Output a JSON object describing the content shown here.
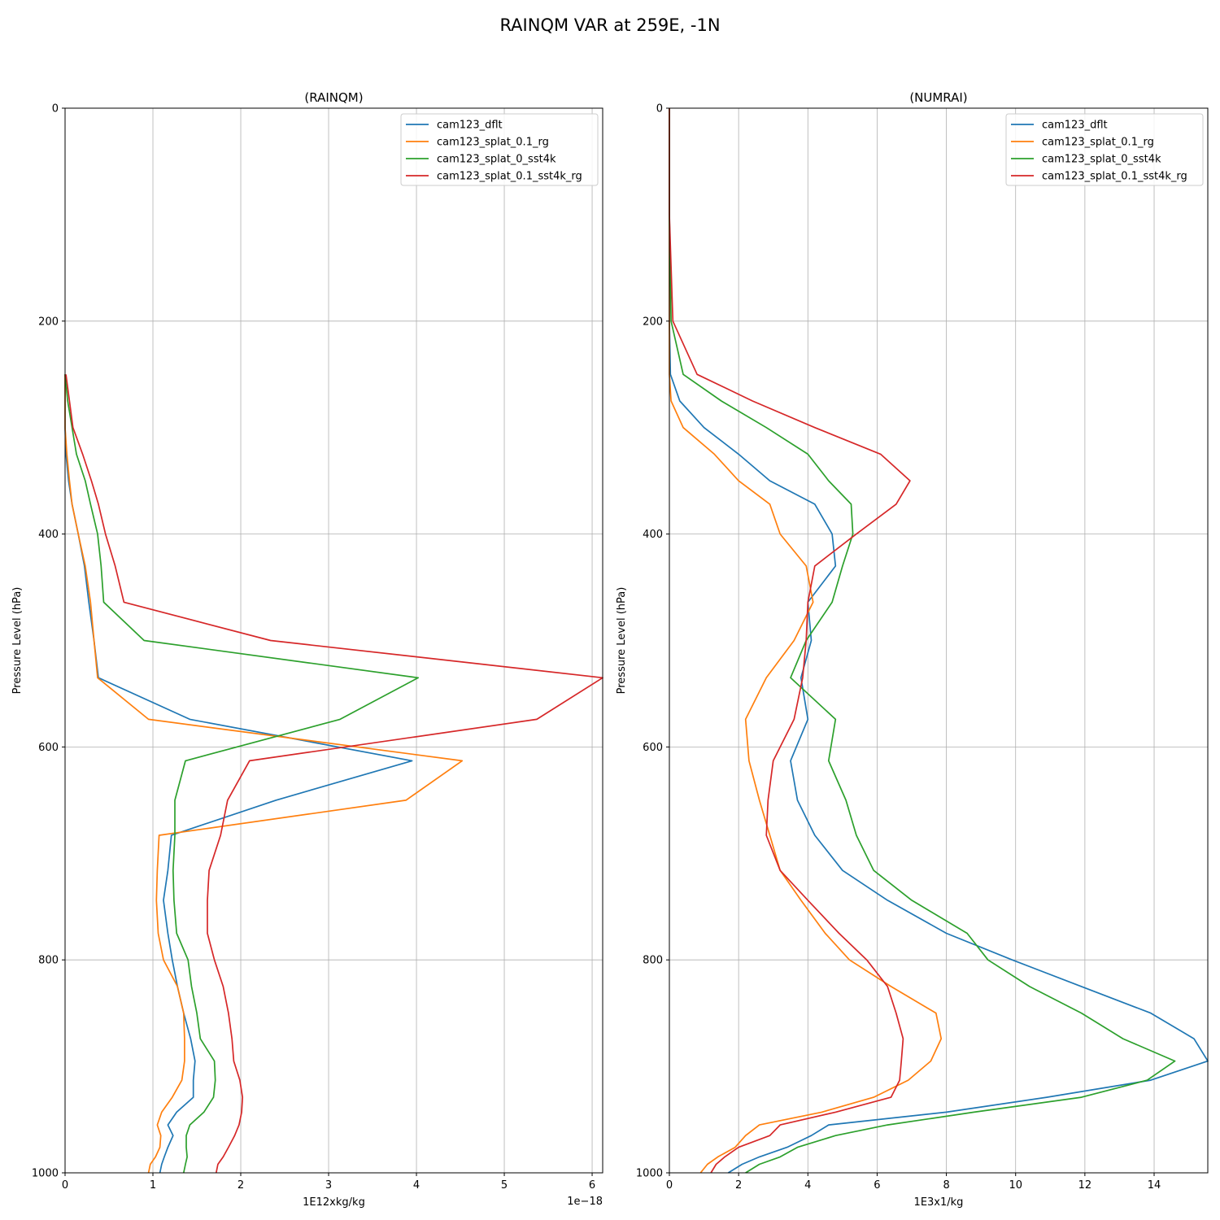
{
  "suptitle": "RAINQM VAR at 259E, -1N",
  "colors": {
    "cam123_dflt": "#1f77b4",
    "cam123_splat_0.1_rg": "#ff7f0e",
    "cam123_splat_0_sst4k": "#2ca02c",
    "cam123_splat_0.1_sst4k_rg": "#d62728"
  },
  "chart_data": [
    {
      "type": "line",
      "title": "(RAINQM)",
      "xlabel": "1E12xkg/kg",
      "ylabel": "Pressure Level (hPa)",
      "offset_text": "1e−18",
      "xlim": [
        0,
        6.12
      ],
      "ylim": [
        1000,
        0
      ],
      "xticks": [
        0,
        1,
        2,
        3,
        4,
        5,
        6
      ],
      "yticks": [
        0,
        200,
        400,
        600,
        800,
        1000
      ],
      "grid": true,
      "legend_position": "top-right",
      "y": [
        1000,
        992,
        985,
        976,
        965,
        955,
        943,
        929,
        913,
        895,
        874,
        850,
        825,
        800,
        775,
        744,
        716,
        683,
        650,
        613,
        574,
        535,
        500,
        464,
        430,
        400,
        372,
        350,
        325,
        300,
        275,
        250
      ],
      "series": [
        {
          "name": "cam123_dflt",
          "values": [
            1.08,
            1.1,
            1.13,
            1.17,
            1.23,
            1.17,
            1.27,
            1.46,
            1.46,
            1.48,
            1.43,
            1.35,
            1.28,
            1.22,
            1.17,
            1.12,
            1.17,
            1.21,
            2.4,
            3.95,
            1.42,
            0.38,
            0.33,
            0.27,
            0.22,
            0.15,
            0.08,
            0.04,
            0.01,
            0.0,
            0.0,
            0.0
          ]
        },
        {
          "name": "cam123_splat_0.1_rg",
          "values": [
            0.95,
            0.97,
            1.03,
            1.08,
            1.09,
            1.05,
            1.1,
            1.22,
            1.33,
            1.36,
            1.36,
            1.35,
            1.28,
            1.12,
            1.06,
            1.04,
            1.05,
            1.07,
            3.88,
            4.52,
            0.95,
            0.37,
            0.33,
            0.29,
            0.23,
            0.15,
            0.08,
            0.05,
            0.02,
            0.0,
            0.0,
            0.0
          ]
        },
        {
          "name": "cam123_splat_0_sst4k",
          "values": [
            1.35,
            1.37,
            1.39,
            1.38,
            1.38,
            1.42,
            1.58,
            1.69,
            1.71,
            1.7,
            1.54,
            1.5,
            1.44,
            1.4,
            1.27,
            1.24,
            1.23,
            1.25,
            1.25,
            1.37,
            3.13,
            4.02,
            0.9,
            0.44,
            0.41,
            0.37,
            0.29,
            0.23,
            0.13,
            0.08,
            0.03,
            0.0
          ]
        },
        {
          "name": "cam123_splat_0.1_sst4k_rg",
          "values": [
            1.72,
            1.74,
            1.8,
            1.86,
            1.93,
            1.98,
            2.01,
            2.02,
            1.99,
            1.92,
            1.9,
            1.86,
            1.8,
            1.7,
            1.62,
            1.62,
            1.64,
            1.77,
            1.85,
            2.1,
            5.37,
            6.12,
            2.34,
            0.67,
            0.57,
            0.46,
            0.38,
            0.3,
            0.2,
            0.09,
            0.05,
            0.01
          ]
        }
      ]
    },
    {
      "type": "line",
      "title": "(NUMRAI)",
      "xlabel": "1E3x1/kg",
      "ylabel": "Pressure Level (hPa)",
      "offset_text": "",
      "xlim": [
        0,
        15.55
      ],
      "ylim": [
        1000,
        0
      ],
      "xticks": [
        0,
        2,
        4,
        6,
        8,
        10,
        12,
        14
      ],
      "yticks": [
        0,
        200,
        400,
        600,
        800,
        1000
      ],
      "grid": true,
      "legend_position": "top-right",
      "y": [
        1000,
        992,
        985,
        976,
        965,
        955,
        943,
        929,
        913,
        895,
        874,
        850,
        825,
        800,
        775,
        744,
        716,
        683,
        650,
        613,
        574,
        535,
        500,
        464,
        430,
        400,
        372,
        350,
        325,
        300,
        275,
        250,
        200,
        100,
        0
      ],
      "series": [
        {
          "name": "cam123_dflt",
          "values": [
            1.7,
            2.1,
            2.6,
            3.4,
            4.1,
            4.6,
            8.0,
            10.9,
            13.9,
            15.55,
            15.15,
            13.9,
            11.9,
            9.9,
            8.0,
            6.3,
            5.0,
            4.2,
            3.7,
            3.5,
            4.0,
            3.8,
            4.1,
            4.0,
            4.8,
            4.7,
            4.2,
            2.9,
            2.0,
            1.0,
            0.3,
            0.03,
            0.0,
            0.0,
            0.0
          ]
        },
        {
          "name": "cam123_splat_0.1_rg",
          "values": [
            0.9,
            1.1,
            1.4,
            1.9,
            2.2,
            2.6,
            4.4,
            5.9,
            6.9,
            7.55,
            7.85,
            7.7,
            6.4,
            5.2,
            4.5,
            3.8,
            3.2,
            2.9,
            2.6,
            2.3,
            2.2,
            2.8,
            3.6,
            4.15,
            3.95,
            3.2,
            2.9,
            2.0,
            1.3,
            0.4,
            0.05,
            0.0,
            0.0,
            0.0,
            0.0
          ]
        },
        {
          "name": "cam123_splat_0_sst4k",
          "values": [
            2.2,
            2.6,
            3.2,
            3.7,
            4.8,
            6.3,
            8.8,
            11.9,
            13.8,
            14.6,
            13.1,
            11.9,
            10.4,
            9.2,
            8.6,
            7.0,
            5.9,
            5.4,
            5.1,
            4.6,
            4.8,
            3.5,
            3.95,
            4.7,
            5.0,
            5.3,
            5.25,
            4.6,
            4.0,
            2.8,
            1.5,
            0.4,
            0.05,
            0.0,
            0.0
          ]
        },
        {
          "name": "cam123_splat_0.1_sst4k_rg",
          "values": [
            1.2,
            1.35,
            1.6,
            2.0,
            2.9,
            3.2,
            4.8,
            6.4,
            6.65,
            6.7,
            6.75,
            6.55,
            6.3,
            5.7,
            4.9,
            4.0,
            3.2,
            2.8,
            2.85,
            3.0,
            3.6,
            3.85,
            3.95,
            4.0,
            4.2,
            5.4,
            6.55,
            6.95,
            6.1,
            4.2,
            2.4,
            0.8,
            0.1,
            0.0,
            0.0
          ]
        }
      ]
    }
  ]
}
